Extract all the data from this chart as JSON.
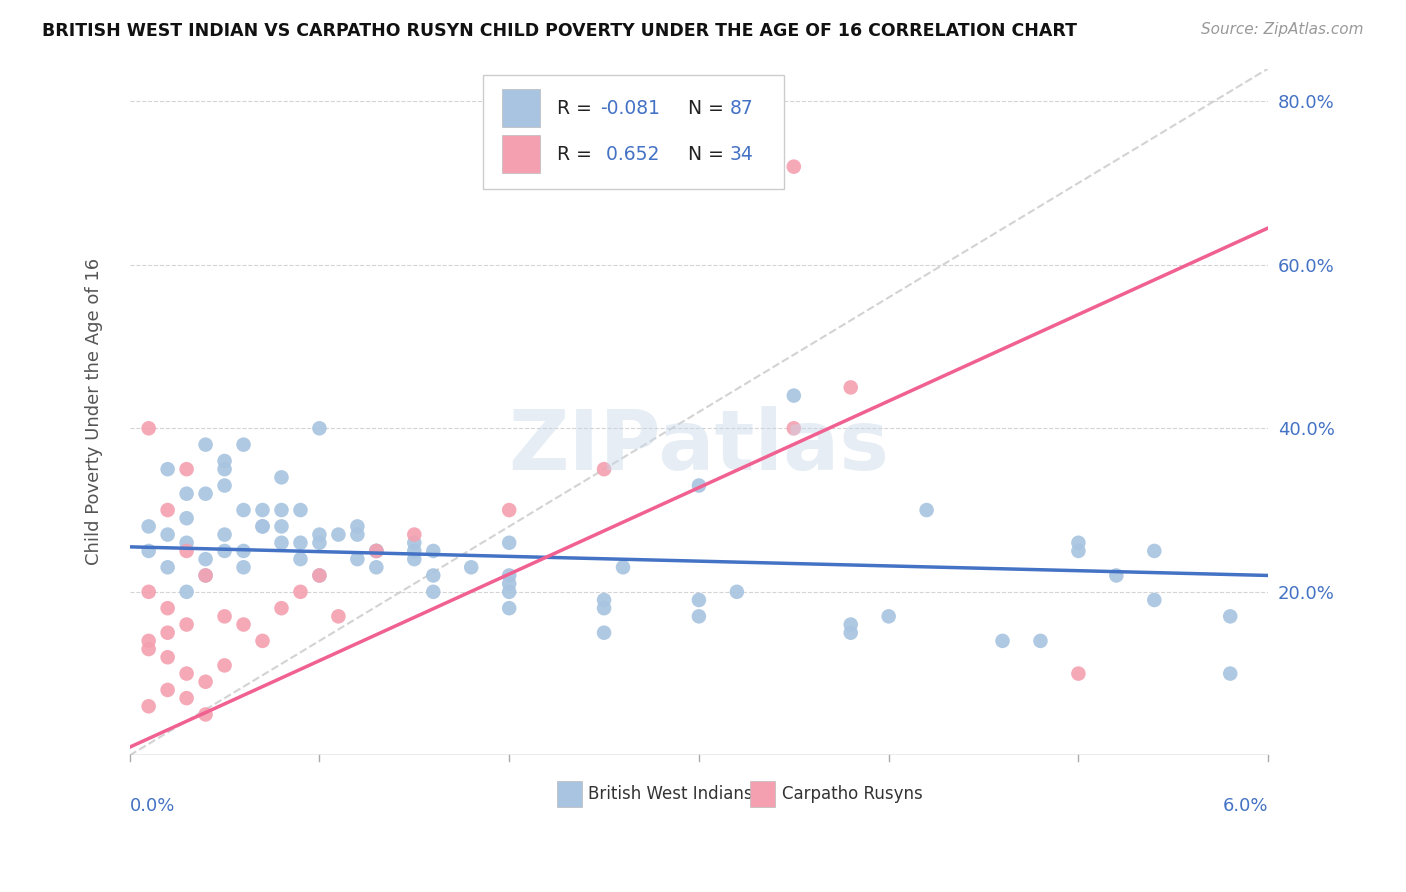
{
  "title": "BRITISH WEST INDIAN VS CARPATHO RUSYN CHILD POVERTY UNDER THE AGE OF 16 CORRELATION CHART",
  "source": "Source: ZipAtlas.com",
  "ylabel": "Child Poverty Under the Age of 16",
  "color_blue": "#a8c4e0",
  "color_pink": "#f4a0b0",
  "line_blue": "#4472c4",
  "line_pink": "#f06090",
  "line_diag": "#c8c8c8",
  "bg_color": "#ffffff",
  "watermark": "ZIPatlas",
  "xlim": [
    0,
    0.06
  ],
  "ylim": [
    0,
    0.84
  ],
  "yticks": [
    0.0,
    0.2,
    0.4,
    0.6,
    0.8
  ],
  "ytick_labels": [
    "",
    "20.0%",
    "40.0%",
    "60.0%",
    "80.0%"
  ],
  "blue_line_x": [
    0.0,
    0.06
  ],
  "blue_line_y": [
    0.255,
    0.22
  ],
  "pink_line_x": [
    0.0,
    0.06
  ],
  "pink_line_y": [
    0.01,
    0.645
  ],
  "diag_line_x": [
    0.0,
    0.06
  ],
  "diag_line_y": [
    0.0,
    0.84
  ],
  "blue_x": [
    0.001,
    0.002,
    0.003,
    0.004,
    0.005,
    0.001,
    0.002,
    0.003,
    0.005,
    0.006,
    0.002,
    0.003,
    0.004,
    0.006,
    0.008,
    0.003,
    0.004,
    0.005,
    0.007,
    0.009,
    0.004,
    0.005,
    0.006,
    0.008,
    0.01,
    0.005,
    0.007,
    0.009,
    0.011,
    0.013,
    0.006,
    0.008,
    0.01,
    0.012,
    0.015,
    0.007,
    0.009,
    0.012,
    0.015,
    0.018,
    0.008,
    0.01,
    0.013,
    0.016,
    0.02,
    0.01,
    0.013,
    0.016,
    0.02,
    0.025,
    0.012,
    0.016,
    0.02,
    0.025,
    0.03,
    0.015,
    0.02,
    0.025,
    0.03,
    0.038,
    0.02,
    0.026,
    0.032,
    0.04,
    0.048,
    0.03,
    0.038,
    0.046,
    0.054,
    0.035,
    0.042,
    0.05,
    0.05,
    0.054,
    0.058,
    0.052,
    0.058
  ],
  "blue_y": [
    0.28,
    0.35,
    0.32,
    0.38,
    0.36,
    0.25,
    0.27,
    0.29,
    0.33,
    0.3,
    0.23,
    0.26,
    0.22,
    0.25,
    0.28,
    0.2,
    0.24,
    0.27,
    0.3,
    0.26,
    0.32,
    0.35,
    0.38,
    0.34,
    0.4,
    0.25,
    0.28,
    0.3,
    0.27,
    0.25,
    0.23,
    0.26,
    0.22,
    0.24,
    0.26,
    0.28,
    0.24,
    0.27,
    0.25,
    0.23,
    0.3,
    0.27,
    0.25,
    0.22,
    0.2,
    0.26,
    0.23,
    0.2,
    0.18,
    0.15,
    0.28,
    0.25,
    0.22,
    0.19,
    0.17,
    0.24,
    0.21,
    0.18,
    0.33,
    0.15,
    0.26,
    0.23,
    0.2,
    0.17,
    0.14,
    0.19,
    0.16,
    0.14,
    0.25,
    0.44,
    0.3,
    0.26,
    0.25,
    0.19,
    0.1,
    0.22,
    0.17
  ],
  "pink_x": [
    0.001,
    0.002,
    0.003,
    0.004,
    0.005,
    0.001,
    0.002,
    0.003,
    0.004,
    0.005,
    0.001,
    0.002,
    0.003,
    0.004,
    0.001,
    0.002,
    0.003,
    0.001,
    0.002,
    0.003,
    0.006,
    0.007,
    0.008,
    0.009,
    0.01,
    0.011,
    0.013,
    0.015,
    0.02,
    0.025,
    0.035,
    0.038,
    0.035,
    0.05
  ],
  "pink_y": [
    0.14,
    0.12,
    0.1,
    0.09,
    0.11,
    0.2,
    0.18,
    0.16,
    0.22,
    0.17,
    0.06,
    0.08,
    0.07,
    0.05,
    0.13,
    0.15,
    0.25,
    0.4,
    0.3,
    0.35,
    0.16,
    0.14,
    0.18,
    0.2,
    0.22,
    0.17,
    0.25,
    0.27,
    0.3,
    0.35,
    0.4,
    0.45,
    0.72,
    0.1
  ]
}
